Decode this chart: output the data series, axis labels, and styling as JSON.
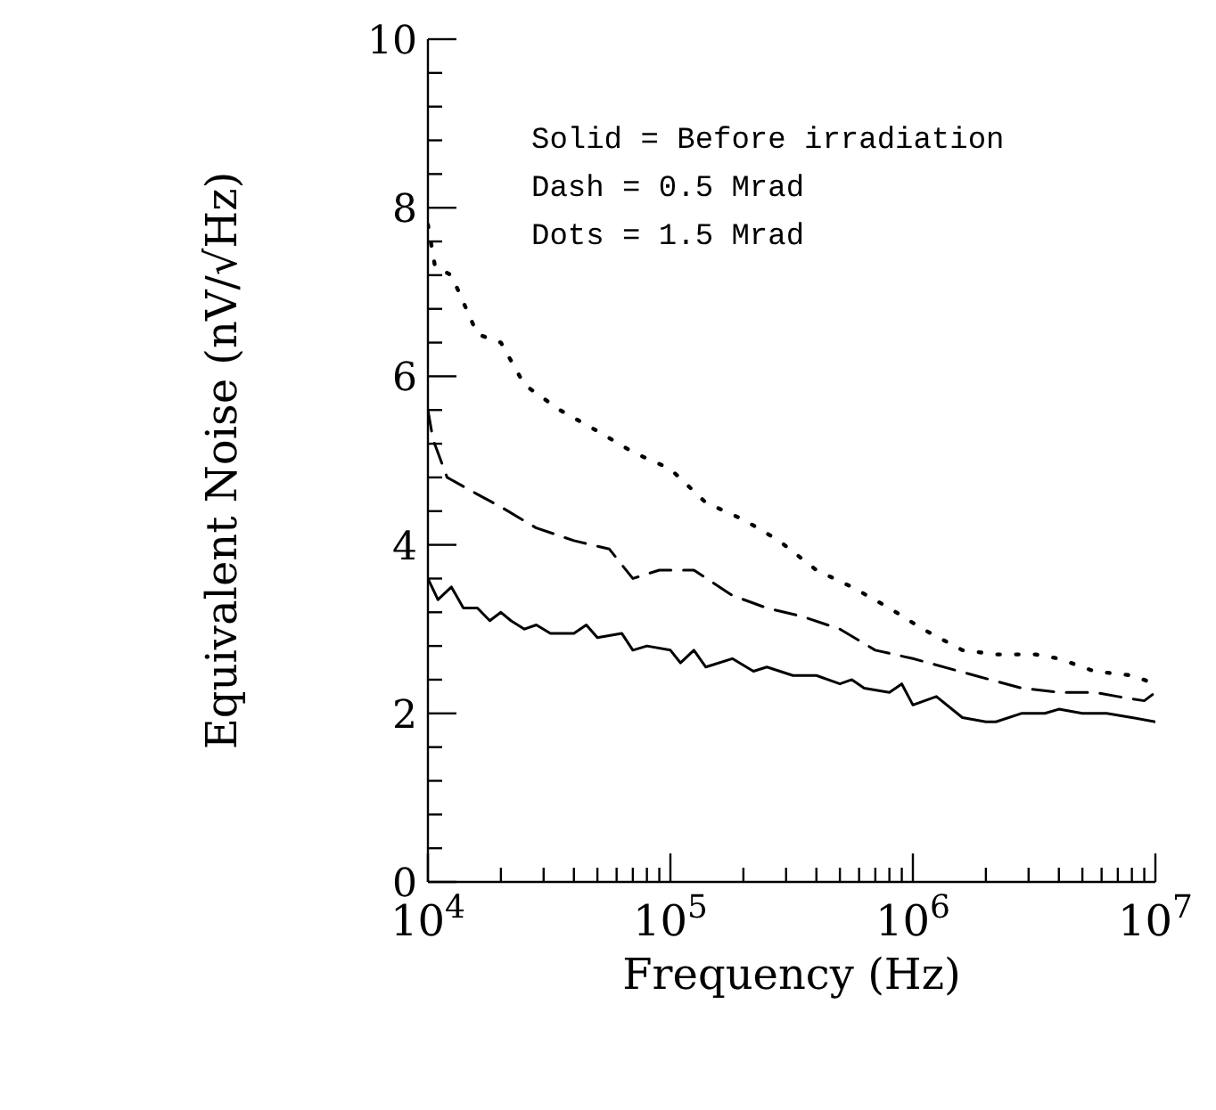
{
  "chart_data": {
    "type": "line",
    "xlabel": "Frequency (Hz)",
    "ylabel": "Equivalent Noise (nV/√Hz)",
    "log": "x",
    "xlim": [
      10000,
      10000000
    ],
    "ylim": [
      0,
      10
    ],
    "xticks": [
      {
        "value": 10000,
        "label": "10$^{4}$"
      },
      {
        "value": 20000,
        "label": null
      },
      {
        "value": 30000,
        "label": null
      },
      {
        "value": 40000,
        "label": null
      },
      {
        "value": 50000,
        "label": null
      },
      {
        "value": 60000,
        "label": null
      },
      {
        "value": 70000,
        "label": null
      },
      {
        "value": 80000,
        "label": null
      },
      {
        "value": 90000,
        "label": null
      },
      {
        "value": 100000,
        "label": "10$^{5}$"
      },
      {
        "value": 200000,
        "label": null
      },
      {
        "value": 300000,
        "label": null
      },
      {
        "value": 400000,
        "label": null
      },
      {
        "value": 500000,
        "label": null
      },
      {
        "value": 600000,
        "label": null
      },
      {
        "value": 700000,
        "label": null
      },
      {
        "value": 800000,
        "label": null
      },
      {
        "value": 900000,
        "label": null
      },
      {
        "value": 1000000,
        "label": "10$^{6}$"
      },
      {
        "value": 2000000,
        "label": null
      },
      {
        "value": 3000000,
        "label": null
      },
      {
        "value": 4000000,
        "label": null
      },
      {
        "value": 5000000,
        "label": null
      },
      {
        "value": 6000000,
        "label": null
      },
      {
        "value": 7000000,
        "label": null
      },
      {
        "value": 8000000,
        "label": null
      },
      {
        "value": 9000000,
        "label": null
      },
      {
        "value": 10000000,
        "label": "10$^{7}$"
      }
    ],
    "yticks": [
      0,
      {
        "value": 0.4,
        "label": null
      },
      {
        "value": 0.8,
        "label": null
      },
      {
        "value": 1.2,
        "label": null
      },
      {
        "value": 1.6,
        "label": null
      },
      2,
      {
        "value": 2.4,
        "label": null
      },
      {
        "value": 2.8,
        "label": null
      },
      {
        "value": 3.2,
        "label": null
      },
      {
        "value": 3.6,
        "label": null
      },
      4,
      {
        "value": 4.4,
        "label": null
      },
      {
        "value": 4.8,
        "label": null
      },
      {
        "value": 5.2,
        "label": null
      },
      {
        "value": 5.6,
        "label": null
      },
      6,
      {
        "value": 6.4,
        "label": null
      },
      {
        "value": 6.8,
        "label": null
      },
      {
        "value": 7.2,
        "label": null
      },
      {
        "value": 7.6,
        "label": null
      },
      8,
      {
        "value": 8.4,
        "label": null
      },
      {
        "value": 8.8,
        "label": null
      },
      {
        "value": 9.2,
        "label": null
      },
      {
        "value": 9.6,
        "label": null
      },
      10
    ],
    "marker": "none",
    "annotations": [
      "Solid = Before irradiation",
      "Dash = 0.5 Mrad",
      "Dots = 1.5 Mrad"
    ],
    "series": [
      {
        "color": "#000000",
        "line_style": "solid",
        "x": [
          10000,
          11000,
          12500,
          14000,
          16000,
          18000,
          20000,
          22000,
          25000,
          28000,
          32000,
          40000,
          45000,
          50000,
          63000,
          70000,
          80000,
          100000,
          110000,
          125000,
          140000,
          180000,
          220000,
          250000,
          320000,
          400000,
          500000,
          560000,
          630000,
          800000,
          900000,
          1000000,
          1250000,
          1600000,
          2000000,
          2200000,
          2800000,
          3500000,
          4000000,
          5000000,
          6300000,
          8000000,
          10000000
        ],
        "values": [
          3.6,
          3.35,
          3.5,
          3.25,
          3.25,
          3.1,
          3.2,
          3.1,
          3.0,
          3.05,
          2.95,
          2.95,
          3.05,
          2.9,
          2.95,
          2.75,
          2.8,
          2.75,
          2.6,
          2.75,
          2.55,
          2.65,
          2.5,
          2.55,
          2.45,
          2.45,
          2.35,
          2.4,
          2.3,
          2.25,
          2.35,
          2.1,
          2.2,
          1.95,
          1.9,
          1.9,
          2.0,
          2.0,
          2.05,
          2.0,
          2.0,
          1.95,
          1.9
        ]
      },
      {
        "color": "#000000",
        "line_style": "dashed",
        "x": [
          10000,
          10500,
          12000,
          16000,
          20000,
          28000,
          40000,
          56000,
          70000,
          90000,
          125000,
          180000,
          250000,
          350000,
          500000,
          700000,
          1000000,
          1800000,
          2800000,
          4000000,
          5600000,
          7000000,
          9000000,
          10000000
        ],
        "values": [
          5.6,
          5.25,
          4.8,
          4.6,
          4.45,
          4.2,
          4.05,
          3.95,
          3.6,
          3.7,
          3.7,
          3.4,
          3.25,
          3.15,
          3.0,
          2.75,
          2.65,
          2.45,
          2.3,
          2.25,
          2.25,
          2.2,
          2.15,
          2.25
        ]
      },
      {
        "color": "#000000",
        "line_style": "dotted",
        "x": [
          10000,
          10700,
          12500,
          16000,
          20000,
          25000,
          35000,
          50000,
          70000,
          100000,
          140000,
          200000,
          280000,
          400000,
          560000,
          800000,
          1100000,
          1600000,
          2200000,
          3200000,
          4000000,
          5600000,
          8000000,
          10000000
        ],
        "values": [
          7.8,
          7.3,
          7.2,
          6.5,
          6.4,
          5.9,
          5.6,
          5.35,
          5.1,
          4.9,
          4.5,
          4.3,
          4.05,
          3.7,
          3.5,
          3.25,
          3.0,
          2.75,
          2.7,
          2.7,
          2.65,
          2.5,
          2.45,
          2.35
        ]
      }
    ]
  }
}
